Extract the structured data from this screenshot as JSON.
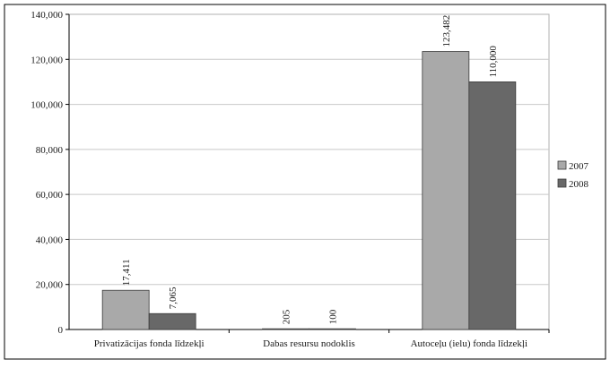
{
  "chart_data": {
    "type": "bar",
    "categories": [
      "Privatizācijas fonda līdzekļi",
      "Dabas resursu nodoklis",
      "Autoceļu (ielu) fonda līdzekļi"
    ],
    "series": [
      {
        "name": "2007",
        "values": [
          17411,
          205,
          123482
        ],
        "labels": [
          "17,411",
          "205",
          "123,482"
        ],
        "color": "#a9a9a9"
      },
      {
        "name": "2008",
        "values": [
          7065,
          100,
          110000
        ],
        "labels": [
          "7,065",
          "100",
          "110,000"
        ],
        "color": "#686868"
      }
    ],
    "y_ticks": [
      "0",
      "20,000",
      "40,000",
      "60,000",
      "80,000",
      "100,000",
      "120,000",
      "140,000"
    ],
    "ylim": [
      0,
      140000
    ],
    "grid": true,
    "legend": "right"
  }
}
